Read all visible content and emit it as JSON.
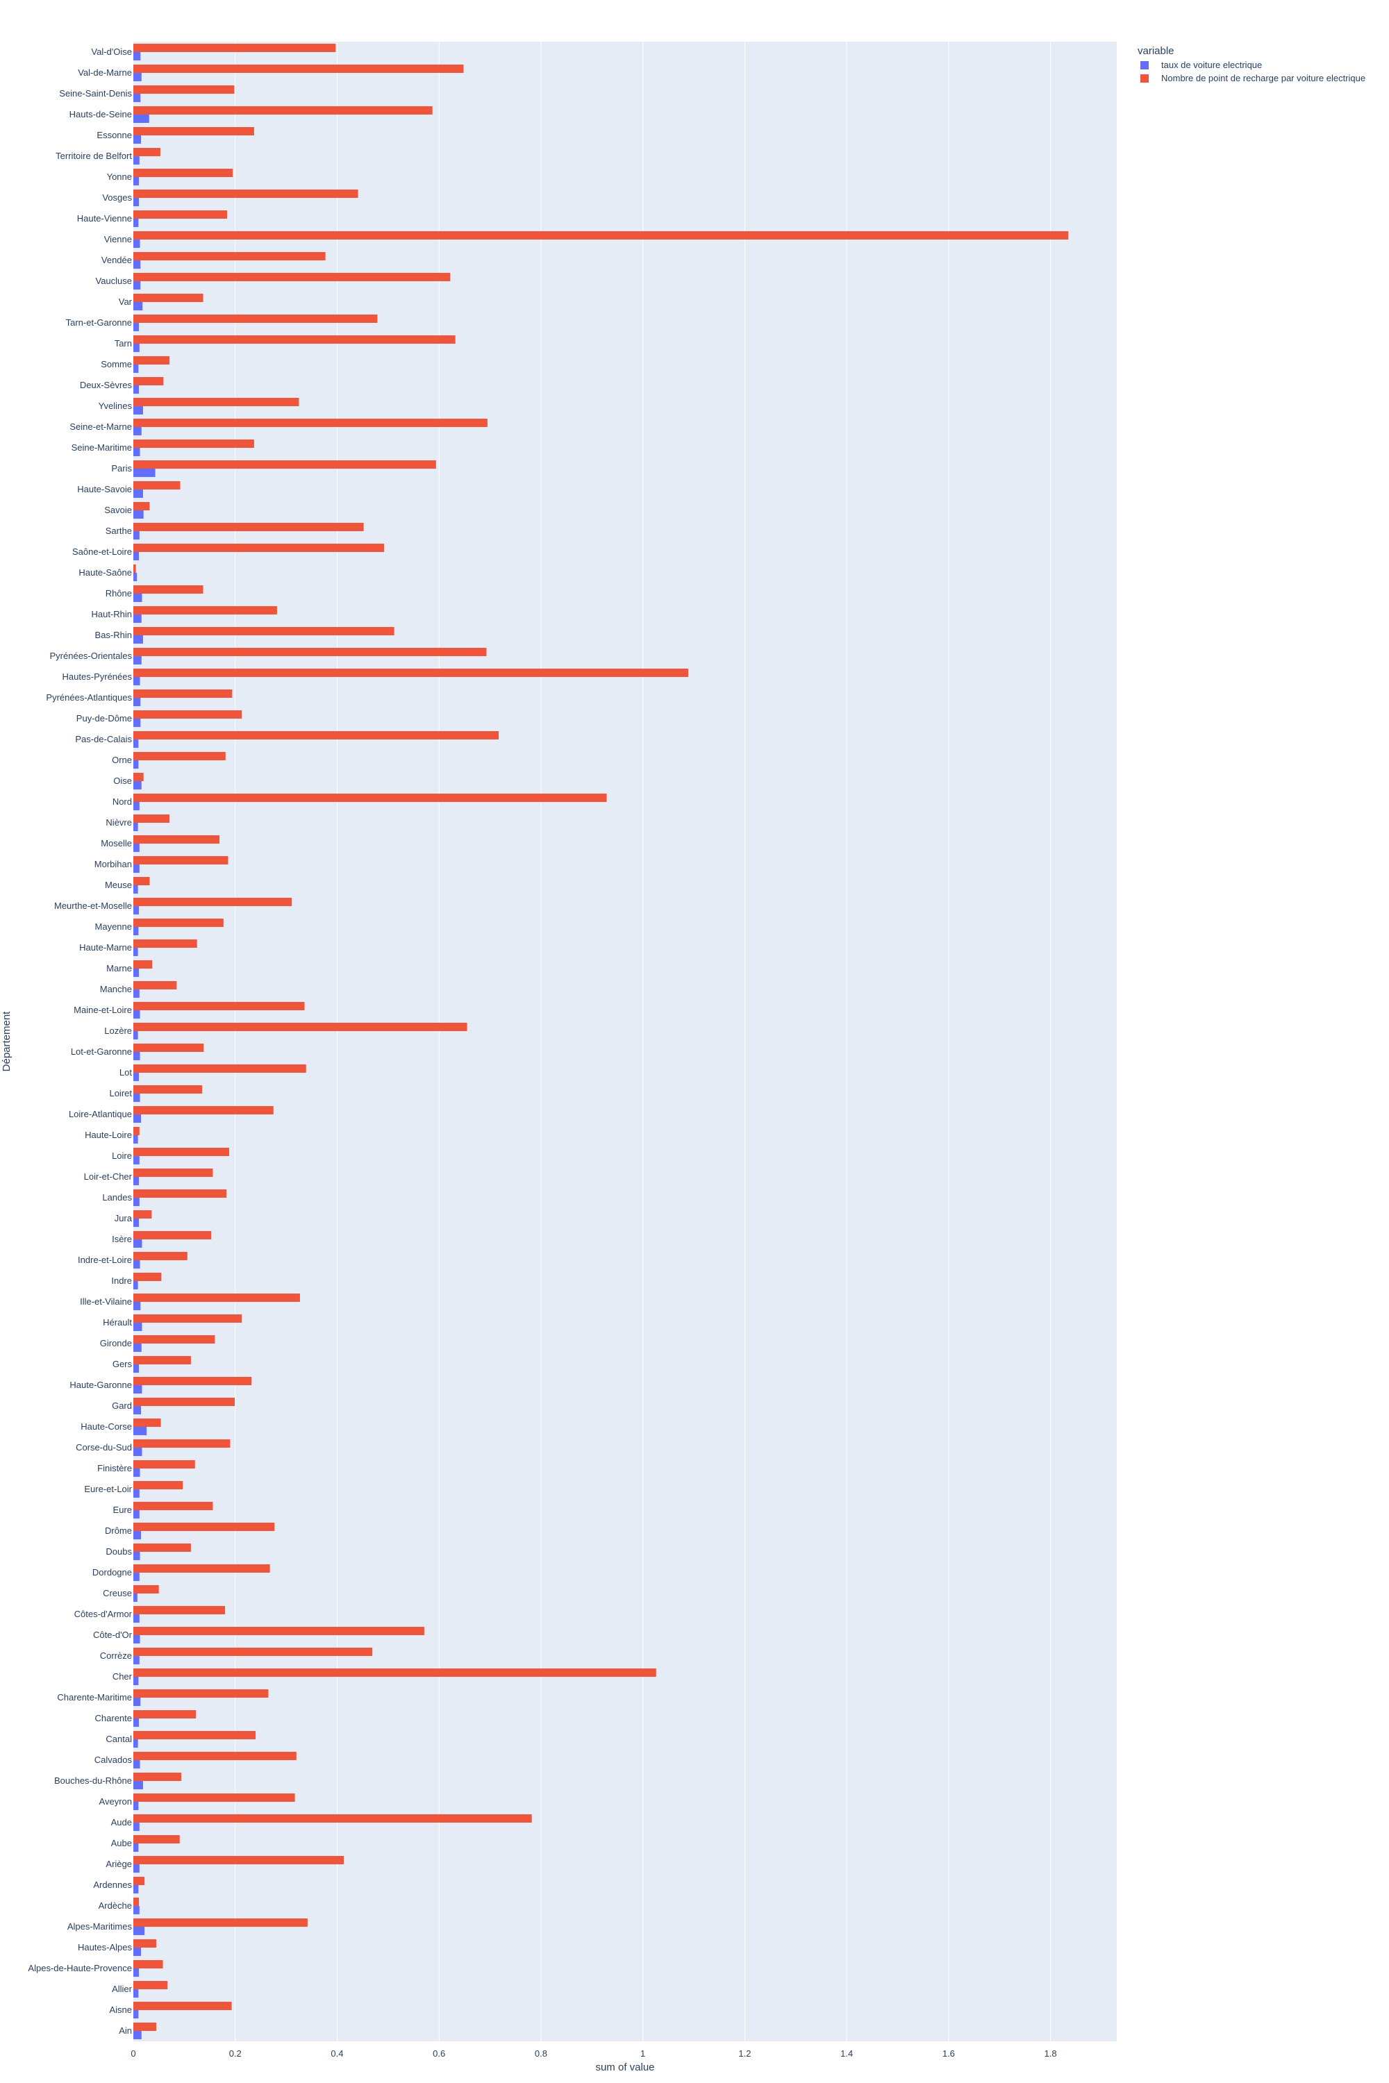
{
  "chart_data": {
    "type": "bar",
    "orientation": "horizontal",
    "barmode": "group",
    "xlabel": "sum of value",
    "ylabel": "Département",
    "xlim": [
      0,
      1.93
    ],
    "xticks": [
      0,
      0.2,
      0.4,
      0.6,
      0.8,
      1,
      1.2,
      1.4,
      1.6,
      1.8
    ],
    "xtick_labels": [
      "0",
      "0.2",
      "0.4",
      "0.6",
      "0.8",
      "1",
      "1.2",
      "1.4",
      "1.6",
      "1.8"
    ],
    "grid": true,
    "legend": {
      "title": "variable",
      "placement": "top-right outside"
    },
    "categories": [
      "Val-d'Oise",
      "Val-de-Marne",
      "Seine-Saint-Denis",
      "Hauts-de-Seine",
      "Essonne",
      "Territoire de Belfort",
      "Yonne",
      "Vosges",
      "Haute-Vienne",
      "Vienne",
      "Vendée",
      "Vaucluse",
      "Var",
      "Tarn-et-Garonne",
      "Tarn",
      "Somme",
      "Deux-Sèvres",
      "Yvelines",
      "Seine-et-Marne",
      "Seine-Maritime",
      "Paris",
      "Haute-Savoie",
      "Savoie",
      "Sarthe",
      "Saône-et-Loire",
      "Haute-Saône",
      "Rhône",
      "Haut-Rhin",
      "Bas-Rhin",
      "Pyrénées-Orientales",
      "Hautes-Pyrénées",
      "Pyrénées-Atlantiques",
      "Puy-de-Dôme",
      "Pas-de-Calais",
      "Orne",
      "Oise",
      "Nord",
      "Nièvre",
      "Moselle",
      "Morbihan",
      "Meuse",
      "Meurthe-et-Moselle",
      "Mayenne",
      "Haute-Marne",
      "Marne",
      "Manche",
      "Maine-et-Loire",
      "Lozère",
      "Lot-et-Garonne",
      "Lot",
      "Loiret",
      "Loire-Atlantique",
      "Haute-Loire",
      "Loire",
      "Loir-et-Cher",
      "Landes",
      "Jura",
      "Isère",
      "Indre-et-Loire",
      "Indre",
      "Ille-et-Vilaine",
      "Hérault",
      "Gironde",
      "Gers",
      "Haute-Garonne",
      "Gard",
      "Haute-Corse",
      "Corse-du-Sud",
      "Finistère",
      "Eure-et-Loir",
      "Eure",
      "Drôme",
      "Doubs",
      "Dordogne",
      "Creuse",
      "Côtes-d'Armor",
      "Côte-d'Or",
      "Corrèze",
      "Cher",
      "Charente-Maritime",
      "Charente",
      "Cantal",
      "Calvados",
      "Bouches-du-Rhône",
      "Aveyron",
      "Aude",
      "Aube",
      "Ariège",
      "Ardennes",
      "Ardèche",
      "Alpes-Maritimes",
      "Hautes-Alpes",
      "Alpes-de-Haute-Provence",
      "Allier",
      "Aisne",
      "Ain"
    ],
    "series": [
      {
        "name": "taux de voiture electrique",
        "color": "#636efa",
        "values": [
          0.014,
          0.016,
          0.014,
          0.031,
          0.015,
          0.012,
          0.011,
          0.011,
          0.01,
          0.013,
          0.014,
          0.014,
          0.018,
          0.011,
          0.012,
          0.01,
          0.011,
          0.019,
          0.016,
          0.013,
          0.043,
          0.019,
          0.02,
          0.012,
          0.011,
          0.007,
          0.017,
          0.016,
          0.019,
          0.016,
          0.013,
          0.014,
          0.014,
          0.01,
          0.01,
          0.016,
          0.012,
          0.009,
          0.012,
          0.012,
          0.009,
          0.011,
          0.01,
          0.009,
          0.011,
          0.012,
          0.013,
          0.009,
          0.013,
          0.011,
          0.013,
          0.015,
          0.009,
          0.012,
          0.011,
          0.012,
          0.011,
          0.017,
          0.013,
          0.009,
          0.014,
          0.017,
          0.016,
          0.011,
          0.017,
          0.015,
          0.026,
          0.017,
          0.013,
          0.012,
          0.012,
          0.015,
          0.013,
          0.012,
          0.008,
          0.012,
          0.013,
          0.012,
          0.01,
          0.014,
          0.011,
          0.009,
          0.013,
          0.019,
          0.01,
          0.012,
          0.01,
          0.012,
          0.01,
          0.012,
          0.022,
          0.015,
          0.011,
          0.01,
          0.01,
          0.016
        ]
      },
      {
        "name": "Nombre de point de recharge par voiture electrique",
        "color": "#ef553b",
        "values": [
          0.397,
          0.648,
          0.198,
          0.587,
          0.237,
          0.053,
          0.195,
          0.441,
          0.184,
          1.835,
          0.377,
          0.622,
          0.137,
          0.479,
          0.632,
          0.071,
          0.059,
          0.325,
          0.695,
          0.237,
          0.594,
          0.092,
          0.032,
          0.452,
          0.492,
          0.005,
          0.137,
          0.282,
          0.512,
          0.693,
          1.089,
          0.194,
          0.213,
          0.717,
          0.181,
          0.02,
          0.929,
          0.071,
          0.169,
          0.186,
          0.032,
          0.311,
          0.177,
          0.125,
          0.037,
          0.085,
          0.336,
          0.655,
          0.138,
          0.339,
          0.135,
          0.275,
          0.012,
          0.188,
          0.156,
          0.183,
          0.036,
          0.153,
          0.106,
          0.055,
          0.327,
          0.213,
          0.16,
          0.113,
          0.232,
          0.199,
          0.054,
          0.19,
          0.121,
          0.097,
          0.156,
          0.277,
          0.113,
          0.268,
          0.05,
          0.18,
          0.571,
          0.469,
          1.026,
          0.265,
          0.123,
          0.24,
          0.32,
          0.094,
          0.317,
          0.782,
          0.091,
          0.413,
          0.022,
          0.011,
          0.342,
          0.045,
          0.058,
          0.067,
          0.193,
          0.045
        ]
      }
    ]
  }
}
